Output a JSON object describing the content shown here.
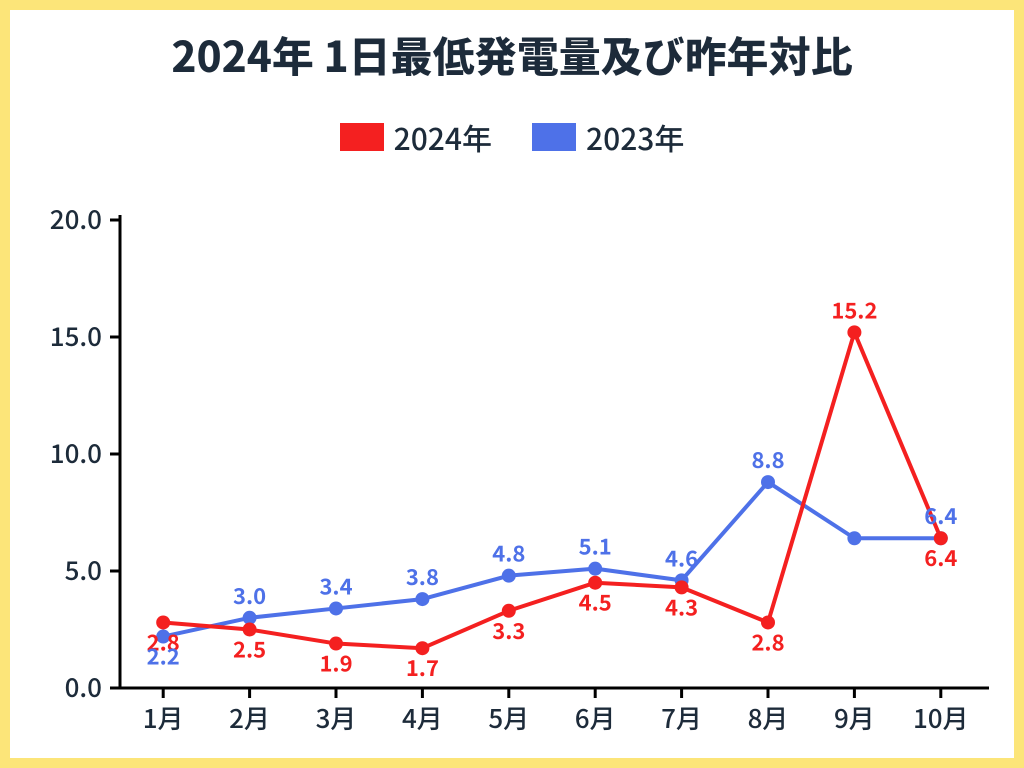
{
  "title": "2024年 1日最低発電量及び昨年対比",
  "title_fontsize": 42,
  "title_color": "#1d2b3a",
  "border_color": "#fce579",
  "background_color": "#ffffff",
  "axis_color": "#000000",
  "axis_line_width": 3,
  "plot": {
    "xlim": [
      0.5,
      10.5
    ],
    "ylim": [
      0,
      20
    ],
    "ytick_step": 5,
    "yticks": [
      "0.0",
      "5.0",
      "10.0",
      "15.0",
      "20.0"
    ],
    "x_categories": [
      "1月",
      "2月",
      "3月",
      "4月",
      "5月",
      "6月",
      "7月",
      "8月",
      "9月",
      "10月"
    ],
    "tick_fontsize": 26,
    "tick_color": "#1d2b3a"
  },
  "legend": {
    "fontsize": 30,
    "text_color": "#1d2b3a",
    "items": [
      {
        "label": "2024年",
        "color": "#f42020"
      },
      {
        "label": "2023年",
        "color": "#4e71e8"
      }
    ]
  },
  "series": [
    {
      "name": "2024年",
      "color": "#f42020",
      "line_width": 4,
      "marker_radius": 7,
      "label_fontsize": 22,
      "label_weight": 700,
      "data": [
        2.8,
        2.5,
        1.9,
        1.7,
        3.3,
        4.5,
        4.3,
        2.8,
        15.2,
        6.4
      ],
      "missing_label_2023_sept": false,
      "label_dy": [
        30,
        -38,
        -38,
        -38,
        -34,
        -34,
        -34,
        -36,
        24,
        -36
      ],
      "label_dy_override": {
        "0": 20,
        "1": -36,
        "2": -36,
        "3": -38,
        "4": -34,
        "5": -32,
        "6": -30,
        "7": -34,
        "8": 28,
        "9": -36
      },
      "label_placement": [
        "below",
        "below",
        "below",
        "below",
        "below",
        "below",
        "below",
        "below",
        "above",
        "below"
      ]
    },
    {
      "name": "2023年",
      "color": "#4e71e8",
      "line_width": 4,
      "marker_radius": 7,
      "label_fontsize": 22,
      "label_weight": 700,
      "data": [
        2.2,
        3.0,
        3.4,
        3.8,
        4.8,
        5.1,
        4.6,
        8.8,
        6.4,
        6.4
      ],
      "label_placement": [
        "below",
        "above",
        "above",
        "above",
        "above",
        "above",
        "above",
        "above",
        "none",
        "above"
      ]
    }
  ]
}
